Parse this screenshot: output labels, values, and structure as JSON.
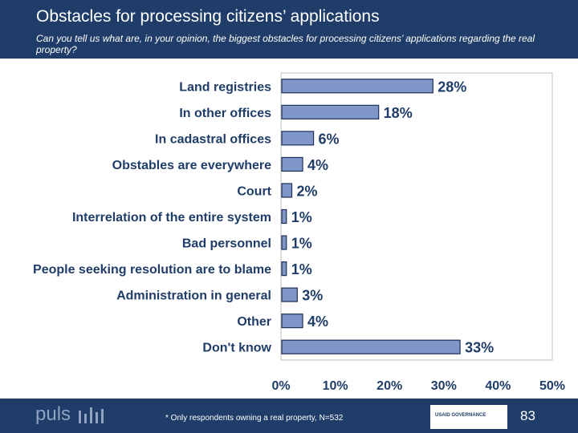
{
  "header": {
    "title": "Obstacles for processing citizens’ applications",
    "subtitle": "Can you tell us what are, in your opinion, the biggest obstacles for processing citizens’ applications regarding the real property?"
  },
  "chart_data": {
    "type": "bar",
    "orientation": "horizontal",
    "categories": [
      "Land registries",
      "In other offices",
      "In cadastral offices",
      "Obstables are everywhere",
      "Court",
      "Interrelation of the entire system",
      "Bad personnel",
      "People seeking resolution are to blame",
      "Administration in general",
      "Other",
      "Don't know"
    ],
    "values": [
      28,
      18,
      6,
      4,
      2,
      1,
      1,
      1,
      3,
      4,
      33
    ],
    "value_labels": [
      "28%",
      "18%",
      "6%",
      "4%",
      "2%",
      "1%",
      "1%",
      "1%",
      "3%",
      "4%",
      "33%"
    ],
    "xlim": [
      0,
      50
    ],
    "ticks": [
      "0%",
      "10%",
      "20%",
      "30%",
      "40%",
      "50%"
    ],
    "bar_color": "#7f96c8",
    "grid": false
  },
  "footer": {
    "logo_text": "puls",
    "footnote": "* Only respondents owning a real property, N=532",
    "partner_text": "USAID GOVERNANCE",
    "page_number": "83"
  }
}
